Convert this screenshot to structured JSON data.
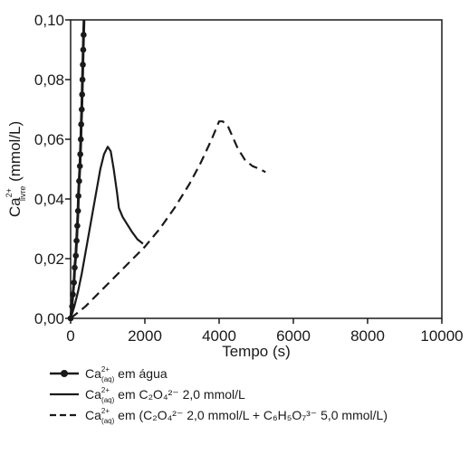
{
  "chart_data": {
    "type": "line",
    "xlabel": "Tempo (s)",
    "ylabel": {
      "base": "Ca",
      "sup": "2+",
      "sub": "livre",
      "unit": " (mmol/L)"
    },
    "xlim": [
      0,
      10000
    ],
    "ylim": [
      0,
      0.1
    ],
    "x_ticks": [
      {
        "value": 0,
        "label": "0"
      },
      {
        "value": 2000,
        "label": "2000"
      },
      {
        "value": 4000,
        "label": "4000"
      },
      {
        "value": 6000,
        "label": "6000"
      },
      {
        "value": 8000,
        "label": "8000"
      },
      {
        "value": 10000,
        "label": "10000"
      }
    ],
    "y_ticks": [
      {
        "value": 0,
        "label": "0,00"
      },
      {
        "value": 0.02,
        "label": "0,02"
      },
      {
        "value": 0.04,
        "label": "0,04"
      },
      {
        "value": 0.06,
        "label": "0,06"
      },
      {
        "value": 0.08,
        "label": "0,08"
      },
      {
        "value": 0.1,
        "label": "0,10"
      }
    ],
    "grid": false,
    "legend_position": "bottom",
    "series": [
      {
        "style": "solid-markers",
        "color": "#1a1a1a",
        "points": [
          [
            0,
            0
          ],
          [
            30,
            0.003
          ],
          [
            60,
            0.008
          ],
          [
            90,
            0.012
          ],
          [
            110,
            0.017
          ],
          [
            140,
            0.021
          ],
          [
            160,
            0.026
          ],
          [
            180,
            0.031
          ],
          [
            200,
            0.036
          ],
          [
            210,
            0.041
          ],
          [
            230,
            0.046
          ],
          [
            250,
            0.051
          ],
          [
            260,
            0.055
          ],
          [
            275,
            0.06
          ],
          [
            285,
            0.065
          ],
          [
            300,
            0.07
          ],
          [
            310,
            0.075
          ],
          [
            320,
            0.08
          ],
          [
            330,
            0.085
          ],
          [
            340,
            0.09
          ],
          [
            350,
            0.095
          ],
          [
            360,
            0.1
          ]
        ],
        "markers": [
          [
            0,
            0
          ],
          [
            40,
            0.004
          ],
          [
            60,
            0.008
          ],
          [
            90,
            0.012
          ],
          [
            110,
            0.017
          ],
          [
            140,
            0.021
          ],
          [
            160,
            0.026
          ],
          [
            180,
            0.031
          ],
          [
            200,
            0.036
          ],
          [
            210,
            0.041
          ],
          [
            230,
            0.046
          ],
          [
            250,
            0.051
          ],
          [
            260,
            0.055
          ],
          [
            275,
            0.06
          ],
          [
            285,
            0.065
          ],
          [
            300,
            0.07
          ],
          [
            310,
            0.075
          ],
          [
            320,
            0.08
          ],
          [
            330,
            0.085
          ],
          [
            340,
            0.09
          ],
          [
            350,
            0.095
          ]
        ],
        "legend": {
          "base": "Ca",
          "sup": "2+",
          "sub": "(aq)",
          "text": " em água"
        }
      },
      {
        "style": "solid",
        "color": "#1a1a1a",
        "points": [
          [
            0,
            0
          ],
          [
            100,
            0.004
          ],
          [
            200,
            0.009
          ],
          [
            300,
            0.015
          ],
          [
            400,
            0.022
          ],
          [
            500,
            0.029
          ],
          [
            600,
            0.036
          ],
          [
            700,
            0.043
          ],
          [
            800,
            0.05
          ],
          [
            900,
            0.055
          ],
          [
            1000,
            0.0575
          ],
          [
            1080,
            0.056
          ],
          [
            1160,
            0.05
          ],
          [
            1250,
            0.042
          ],
          [
            1300,
            0.037
          ],
          [
            1400,
            0.034
          ],
          [
            1500,
            0.032
          ],
          [
            1650,
            0.029
          ],
          [
            1800,
            0.0265
          ],
          [
            1950,
            0.025
          ]
        ],
        "legend": {
          "base": "Ca",
          "sup": "2+",
          "sub": "(aq)",
          "text": " em C₂O₄²⁻ 2,0 mmol/L"
        }
      },
      {
        "style": "dashed",
        "color": "#1a1a1a",
        "points": [
          [
            0,
            0
          ],
          [
            400,
            0.004
          ],
          [
            800,
            0.009
          ],
          [
            1200,
            0.014
          ],
          [
            1600,
            0.019
          ],
          [
            2000,
            0.024
          ],
          [
            2400,
            0.03
          ],
          [
            2800,
            0.037
          ],
          [
            3200,
            0.045
          ],
          [
            3500,
            0.052
          ],
          [
            3800,
            0.06
          ],
          [
            4000,
            0.066
          ],
          [
            4100,
            0.066
          ],
          [
            4250,
            0.064
          ],
          [
            4500,
            0.057
          ],
          [
            4700,
            0.053
          ],
          [
            4900,
            0.051
          ],
          [
            5100,
            0.05
          ],
          [
            5250,
            0.049
          ]
        ],
        "legend": {
          "base": "Ca",
          "sup": "2+",
          "sub": "(aq)",
          "text": " em (C₂O₄²⁻ 2,0 mmol/L + C₆H₅O₇³⁻ 5,0 mmol/L)"
        }
      }
    ]
  }
}
